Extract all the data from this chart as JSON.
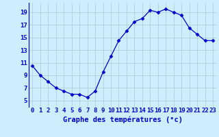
{
  "hours": [
    0,
    1,
    2,
    3,
    4,
    5,
    6,
    7,
    8,
    9,
    10,
    11,
    12,
    13,
    14,
    15,
    16,
    17,
    18,
    19,
    20,
    21,
    22,
    23
  ],
  "temps": [
    10.5,
    9.0,
    8.0,
    7.0,
    6.5,
    6.0,
    6.0,
    5.5,
    6.5,
    9.5,
    12.0,
    14.5,
    16.0,
    17.5,
    18.0,
    19.3,
    19.0,
    19.5,
    19.0,
    18.5,
    16.5,
    15.5,
    14.5,
    14.5
  ],
  "line_color": "#0000cc",
  "marker": "D",
  "marker_size": 2.5,
  "xlabel": "Graphe des températures (°c)",
  "xlabel_color": "#0000cc",
  "bg_color": "#cceeff",
  "grid_color": "#b0c8d0",
  "tick_color": "#0000cc",
  "ylim": [
    4,
    20.5
  ],
  "xlim": [
    -0.5,
    23.5
  ],
  "yticks": [
    5,
    7,
    9,
    11,
    13,
    15,
    17,
    19
  ],
  "axis_fontsize": 6.5,
  "label_fontsize": 7.5
}
